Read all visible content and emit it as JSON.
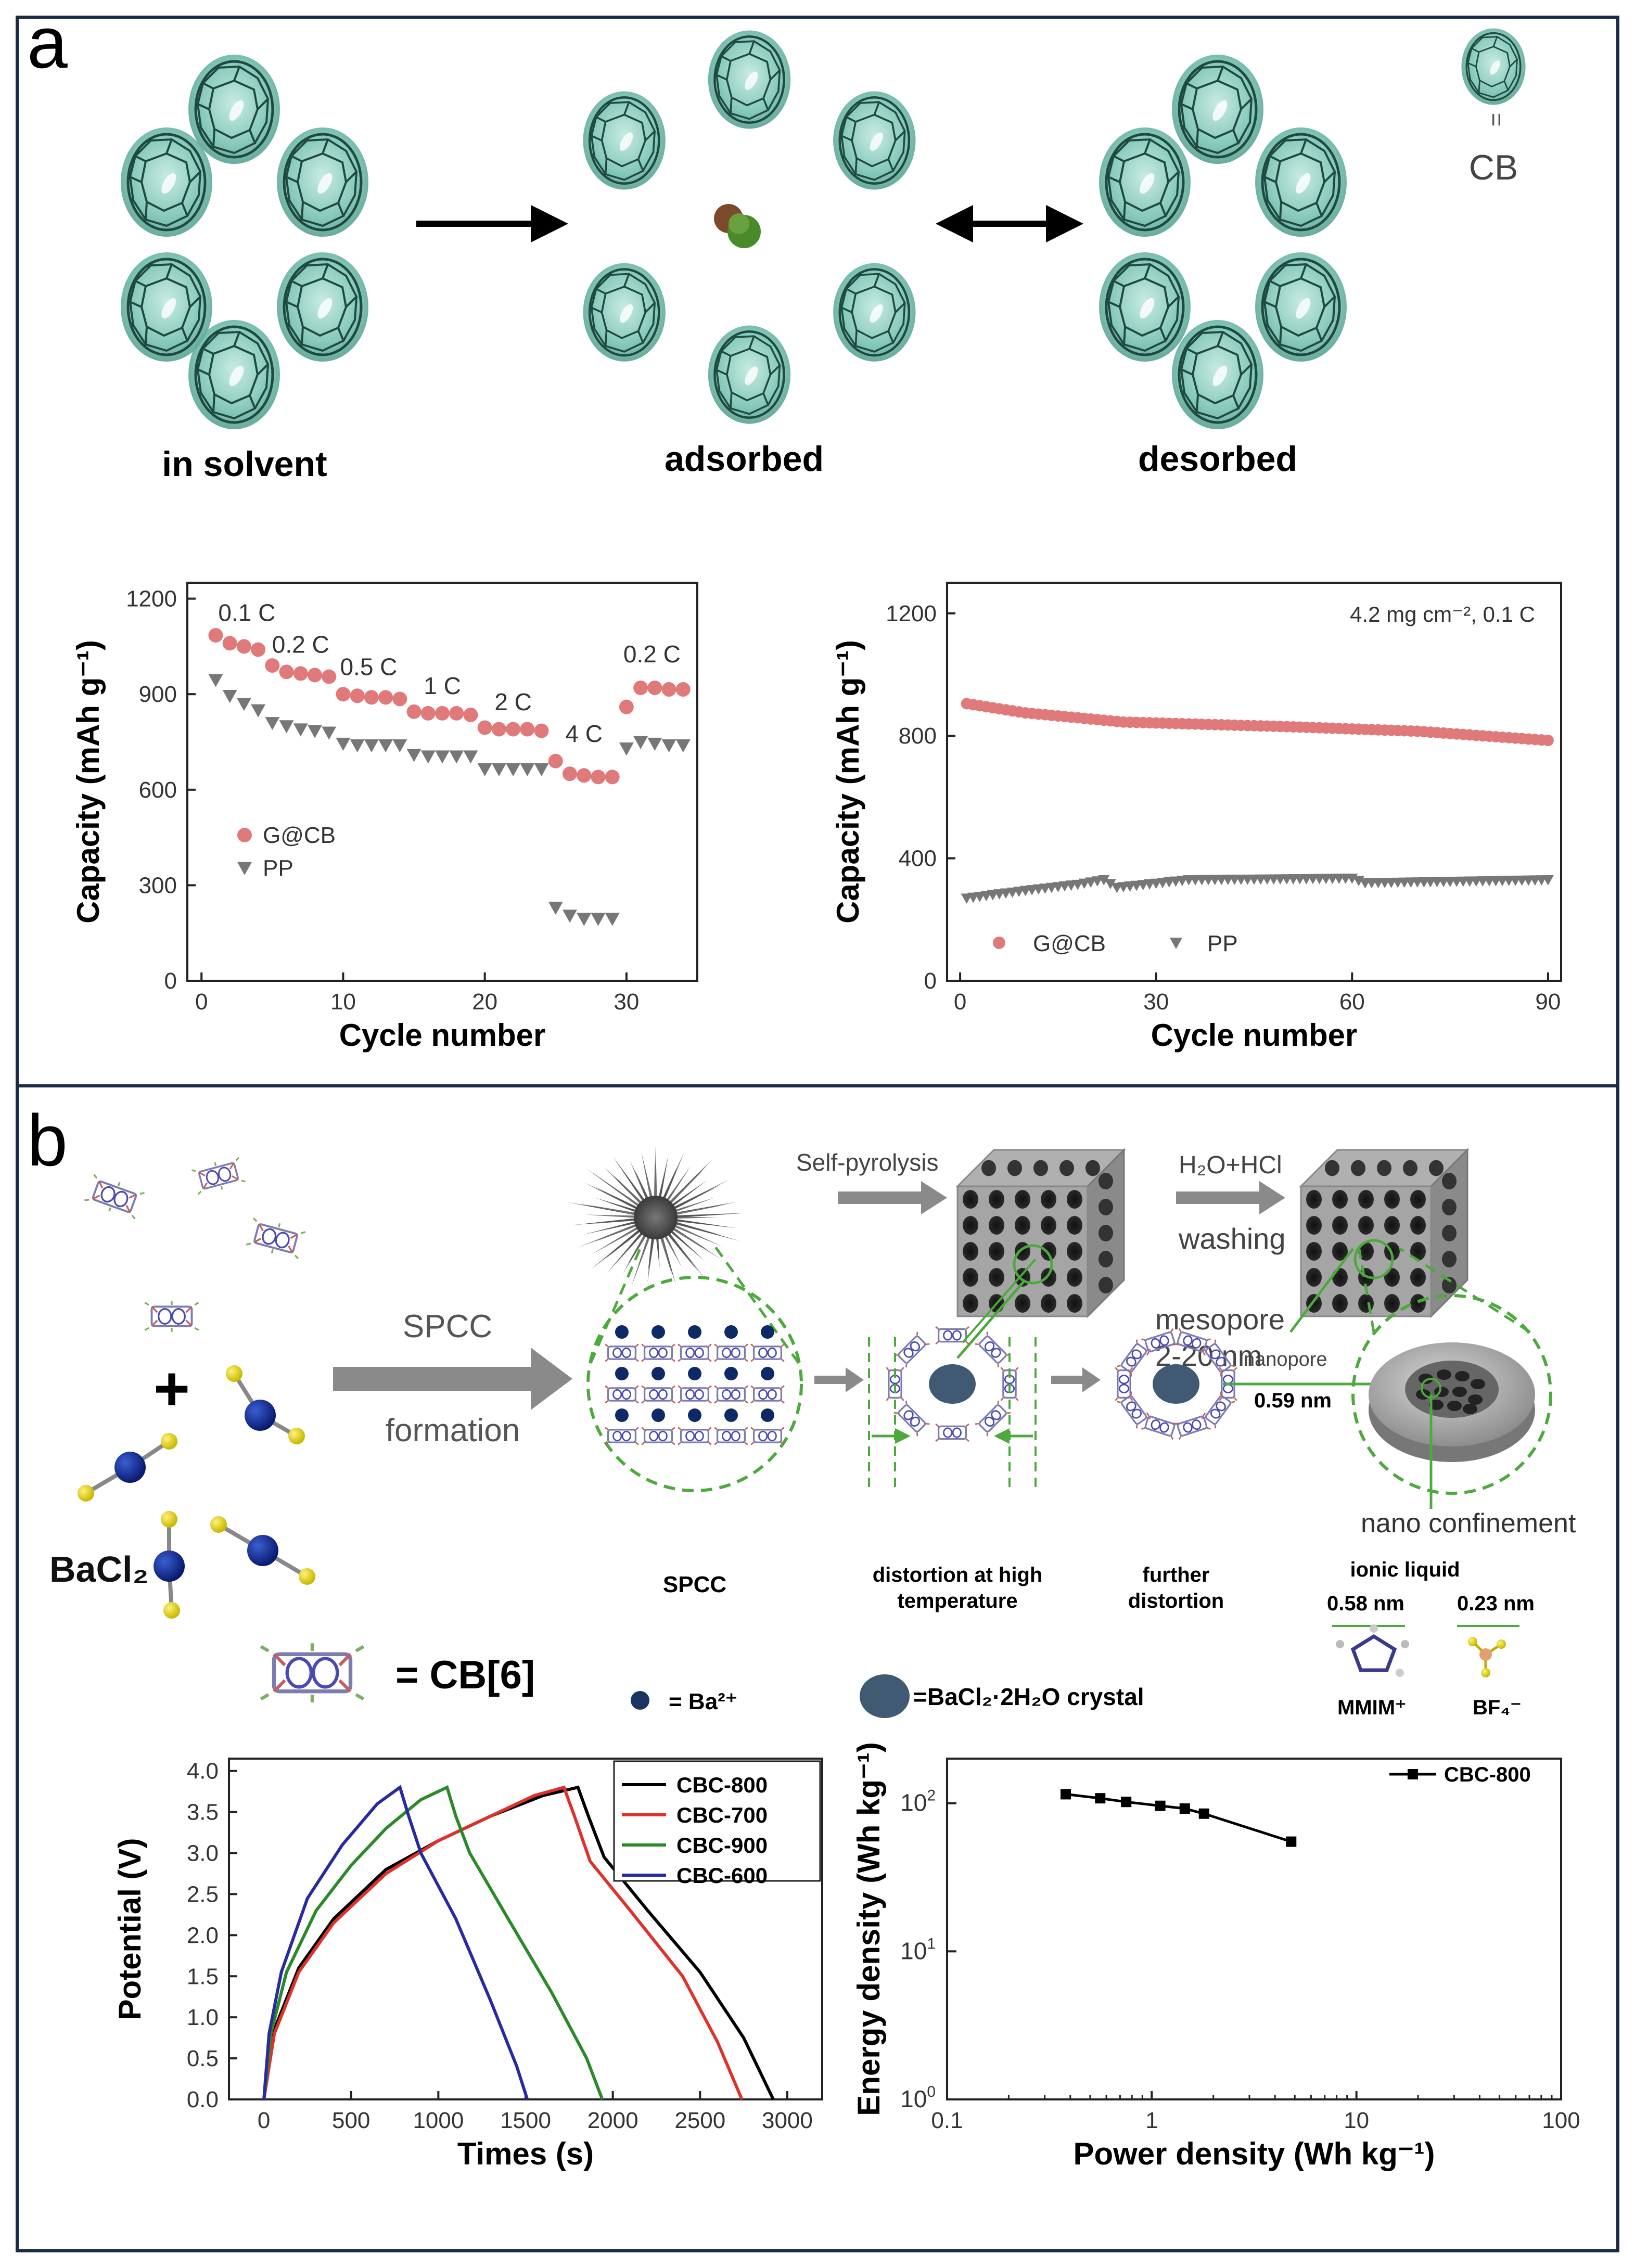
{
  "panels": {
    "a": "a",
    "b": "b"
  },
  "panel_a": {
    "legend_equals": "=",
    "legend_cb": "CB",
    "states": [
      "in solvent",
      "adsorbed",
      "desorbed"
    ]
  },
  "panel_b": {
    "self_pyrolysis": "Self-pyrolysis",
    "h2o_hcl": "H₂O+HCl",
    "washing": "washing",
    "mesopore": "mesopore",
    "mesopore_size": "2-20 nm",
    "spcc_arrow_1": "SPCC",
    "spcc_arrow_2": "formation",
    "nanopore": "nanopore",
    "nanopore_size": "0.59 nm",
    "nano_confinement": "nano confinement",
    "ionic_liquid": "ionic liquid",
    "mmim_size": "0.58 nm",
    "bf4_size": "0.23 nm",
    "mmim": "MMIM⁺",
    "bf4": "BF₄⁻",
    "bacl2": "BaCl₂",
    "plus": "+",
    "cb6": "= CB[6]",
    "spcc_label": "SPCC",
    "distortion_1": "distortion at high",
    "distortion_2": "temperature",
    "further_1": "further",
    "further_2": "distortion",
    "ba_legend": "= Ba²⁺",
    "crystal_legend": "=BaCl₂·2H₂O crystal"
  },
  "chart_data": [
    {
      "id": "rate",
      "type": "scatter",
      "xlabel": "Cycle number",
      "ylabel": "Capacity (mAh g⁻¹)",
      "xlim": [
        -1,
        35
      ],
      "ylim": [
        0,
        1250
      ],
      "xticks": [
        0,
        10,
        20,
        30
      ],
      "yticks": [
        0,
        300,
        600,
        900,
        1200
      ],
      "series": [
        {
          "name": "G@CB",
          "color": "#e07a7a",
          "marker": "circle",
          "x": [
            1,
            2,
            3,
            4,
            5,
            6,
            7,
            8,
            9,
            10,
            11,
            12,
            13,
            14,
            15,
            16,
            17,
            18,
            19,
            20,
            21,
            22,
            23,
            24,
            25,
            26,
            27,
            28,
            29,
            30,
            31,
            32,
            33,
            34
          ],
          "y": [
            1085,
            1060,
            1050,
            1040,
            990,
            970,
            965,
            960,
            955,
            900,
            895,
            890,
            890,
            885,
            845,
            840,
            840,
            840,
            835,
            795,
            790,
            790,
            790,
            785,
            690,
            650,
            645,
            640,
            640,
            860,
            920,
            920,
            915,
            915
          ]
        },
        {
          "name": "PP",
          "color": "#777777",
          "marker": "triangle",
          "x": [
            1,
            2,
            3,
            4,
            5,
            6,
            7,
            8,
            9,
            10,
            11,
            12,
            13,
            14,
            15,
            16,
            17,
            18,
            19,
            20,
            21,
            22,
            23,
            24,
            25,
            26,
            27,
            28,
            29,
            30,
            31,
            32,
            33,
            34
          ],
          "y": [
            945,
            895,
            870,
            850,
            810,
            800,
            790,
            785,
            780,
            745,
            740,
            740,
            740,
            740,
            710,
            705,
            705,
            705,
            705,
            665,
            665,
            665,
            665,
            665,
            230,
            205,
            195,
            195,
            195,
            730,
            750,
            745,
            740,
            740
          ]
        }
      ],
      "annotations": [
        {
          "text": "0.1 C",
          "x": 3.2,
          "y": 1130
        },
        {
          "text": "0.2 C",
          "x": 7.0,
          "y": 1030
        },
        {
          "text": "0.5 C",
          "x": 11.8,
          "y": 960
        },
        {
          "text": "1 C",
          "x": 17.0,
          "y": 900
        },
        {
          "text": "2 C",
          "x": 22.0,
          "y": 850
        },
        {
          "text": "4 C",
          "x": 27.0,
          "y": 750
        },
        {
          "text": "0.2 C",
          "x": 31.8,
          "y": 1000
        }
      ]
    },
    {
      "id": "cycling",
      "type": "scatter",
      "xlabel": "Cycle number",
      "ylabel": "Capacity (mAh g⁻¹)",
      "xlim": [
        -2,
        92
      ],
      "ylim": [
        0,
        1300
      ],
      "xticks": [
        0,
        30,
        60,
        90
      ],
      "yticks": [
        0,
        400,
        800,
        1200
      ],
      "condition": "4.2 mg cm⁻², 0.1 C",
      "series": [
        {
          "name": "G@CB",
          "color": "#e07a7a",
          "marker": "circle",
          "x_start": 1,
          "x_end": 90,
          "y_key": [
            [
              1,
              905
            ],
            [
              10,
              875
            ],
            [
              25,
              845
            ],
            [
              50,
              830
            ],
            [
              70,
              815
            ],
            [
              90,
              785
            ]
          ]
        },
        {
          "name": "PP",
          "color": "#777777",
          "marker": "triangle",
          "x_start": 1,
          "x_end": 90,
          "y_key": [
            [
              1,
              270
            ],
            [
              10,
              295
            ],
            [
              18,
              315
            ],
            [
              22,
              330
            ],
            [
              24,
              305
            ],
            [
              35,
              330
            ],
            [
              60,
              335
            ],
            [
              62,
              320
            ],
            [
              90,
              330
            ]
          ]
        }
      ]
    },
    {
      "id": "gcd",
      "type": "line",
      "xlabel": "Times (s)",
      "ylabel": "Potential (V)",
      "xlim": [
        -200,
        3200
      ],
      "ylim": [
        0,
        4.15
      ],
      "xticks": [
        0,
        500,
        1000,
        1500,
        2000,
        2500,
        3000
      ],
      "yticks": [
        0.0,
        0.5,
        1.0,
        1.5,
        2.0,
        2.5,
        3.0,
        3.5,
        4.0
      ],
      "series": [
        {
          "name": "CBC-800",
          "color": "#000000",
          "peak_x": 1800,
          "end_x": 2920,
          "charge": [
            [
              0,
              0
            ],
            [
              60,
              0.85
            ],
            [
              200,
              1.6
            ],
            [
              400,
              2.2
            ],
            [
              700,
              2.8
            ],
            [
              1000,
              3.15
            ],
            [
              1300,
              3.45
            ],
            [
              1600,
              3.7
            ],
            [
              1800,
              3.8
            ]
          ],
          "discharge": [
            [
              1800,
              3.8
            ],
            [
              1860,
              3.45
            ],
            [
              1950,
              2.95
            ],
            [
              2200,
              2.3
            ],
            [
              2500,
              1.55
            ],
            [
              2750,
              0.75
            ],
            [
              2920,
              0
            ]
          ]
        },
        {
          "name": "CBC-700",
          "color": "#e0302a",
          "peak_x": 1720,
          "end_x": 2740,
          "charge": [
            [
              0,
              0
            ],
            [
              60,
              0.8
            ],
            [
              200,
              1.55
            ],
            [
              400,
              2.15
            ],
            [
              700,
              2.75
            ],
            [
              1000,
              3.15
            ],
            [
              1300,
              3.45
            ],
            [
              1550,
              3.7
            ],
            [
              1720,
              3.8
            ]
          ],
          "discharge": [
            [
              1720,
              3.8
            ],
            [
              1780,
              3.45
            ],
            [
              1870,
              2.9
            ],
            [
              2100,
              2.3
            ],
            [
              2400,
              1.5
            ],
            [
              2600,
              0.7
            ],
            [
              2740,
              0
            ]
          ]
        },
        {
          "name": "CBC-900",
          "color": "#2a8a2a",
          "peak_x": 1050,
          "end_x": 1940,
          "charge": [
            [
              0,
              0
            ],
            [
              40,
              0.8
            ],
            [
              130,
              1.55
            ],
            [
              300,
              2.3
            ],
            [
              500,
              2.85
            ],
            [
              700,
              3.3
            ],
            [
              900,
              3.65
            ],
            [
              1050,
              3.8
            ]
          ],
          "discharge": [
            [
              1050,
              3.8
            ],
            [
              1100,
              3.45
            ],
            [
              1180,
              3.0
            ],
            [
              1400,
              2.2
            ],
            [
              1650,
              1.3
            ],
            [
              1850,
              0.5
            ],
            [
              1940,
              0
            ]
          ]
        },
        {
          "name": "CBC-600",
          "color": "#2a2aa0",
          "peak_x": 780,
          "end_x": 1510,
          "charge": [
            [
              0,
              0
            ],
            [
              30,
              0.8
            ],
            [
              100,
              1.55
            ],
            [
              250,
              2.45
            ],
            [
              450,
              3.1
            ],
            [
              650,
              3.6
            ],
            [
              780,
              3.8
            ]
          ],
          "discharge": [
            [
              780,
              3.8
            ],
            [
              830,
              3.45
            ],
            [
              900,
              3.0
            ],
            [
              1100,
              2.2
            ],
            [
              1300,
              1.2
            ],
            [
              1450,
              0.4
            ],
            [
              1510,
              0
            ]
          ]
        }
      ]
    },
    {
      "id": "ragone",
      "type": "line",
      "xlabel": "Power density (Wh kg⁻¹)",
      "ylabel": "Energy density (Wh kg⁻¹)",
      "xscale": "log",
      "yscale": "log",
      "xlim": [
        0.1,
        100
      ],
      "ylim": [
        1,
        200
      ],
      "xticks": [
        0.1,
        1,
        10,
        100
      ],
      "xtick_labels": [
        "0.1",
        "1",
        "10",
        "100"
      ],
      "series": [
        {
          "name": "CBC-800",
          "color": "#000000",
          "marker": "square",
          "x": [
            0.38,
            0.56,
            0.75,
            1.1,
            1.45,
            1.8,
            4.8
          ],
          "y": [
            115,
            108,
            102,
            96,
            92,
            85,
            55
          ]
        }
      ]
    }
  ]
}
